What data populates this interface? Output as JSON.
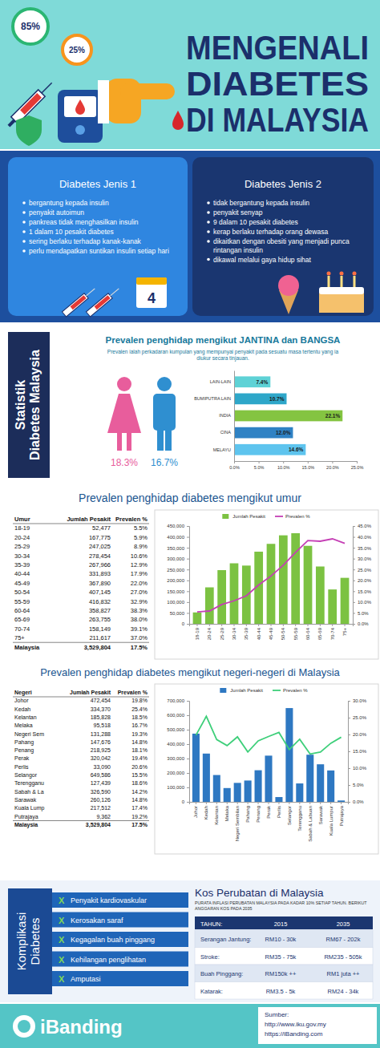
{
  "header": {
    "badges": [
      "85%",
      "25%"
    ],
    "title_lines": [
      "MENGENALI",
      "DIABETES",
      "DI MALAYSIA"
    ]
  },
  "types": [
    {
      "title": "Diabetes Jenis 1",
      "items": [
        "bergantung kepada insulin",
        "penyakit autoimun",
        "pankreas tidak menghasilkan insulin",
        "1 dalam 10 pesakit diabetes",
        "sering berlaku terhadap kanak-kanak",
        "perlu mendapatkan suntikan insulin setiap hari"
      ]
    },
    {
      "title": "Diabetes Jenis 2",
      "items": [
        "tidak bergantung kepada insulin",
        "penyakit senyap",
        "9 dalam 10 pesakit diabetes",
        "kerap berlaku terhadap orang dewasa",
        "dikaitkan dengan obesiti yang menjadi punca rintangan insulin",
        "dikawal melalui gaya hidup sihat"
      ]
    }
  ],
  "calendar_number": "4",
  "stats": {
    "side_label_lines": [
      "Statistik",
      "Diabetes Malaysia"
    ],
    "title": "Prevalen penghidap mengikut JANTINA dan BANGSA",
    "subtitle": "Prevalen ialah perkadaran kumpulan yang mempunyai penyakit pada sesuatu masa tertentu yang ia diukur secara tinjauan.",
    "gender": [
      "18.3%",
      "16.7%"
    ]
  },
  "chart_data": [
    {
      "type": "bar",
      "orientation": "horizontal",
      "categories": [
        "LAIN-LAIN",
        "BUMIPUTRA LAIN",
        "INDIA",
        "CINA",
        "MELAYU"
      ],
      "values": [
        7.4,
        10.7,
        22.1,
        12.0,
        14.6
      ],
      "value_labels": [
        "7.4%",
        "10.7%",
        "22.1%",
        "12.0%",
        "14.6%"
      ],
      "colors": [
        "#5ed2d6",
        "#2ea7c9",
        "#84c441",
        "#2f82c4",
        "#5ec4ee"
      ],
      "xlim": [
        0,
        25
      ],
      "xticks": [
        {
          "value": 0,
          "label": "0.0%"
        },
        {
          "value": 5,
          "label": "5.0%"
        },
        {
          "value": 10,
          "label": "10.0%"
        },
        {
          "value": 15,
          "label": "15.0%"
        },
        {
          "value": 20,
          "label": "20.0%"
        },
        {
          "value": 25,
          "label": "25.0%"
        }
      ],
      "data_labels": true,
      "grid": false
    },
    {
      "type": "bar",
      "title": "Prevalen penghidap diabetes mengikut umur",
      "categories": [
        "18-19",
        "20-24",
        "25-29",
        "30-34",
        "35-39",
        "40-44",
        "45-49",
        "50-54",
        "55-59",
        "60-64",
        "65-69",
        "70-74",
        "75+"
      ],
      "series": [
        {
          "name": "Jumlah Pesakit",
          "type": "bar",
          "color": "#7cc242",
          "values": [
            52477,
            167775,
            247025,
            278454,
            267966,
            331893,
            367890,
            407145,
            416832,
            358827,
            263755,
            158149,
            211617
          ]
        },
        {
          "name": "Prevalen %",
          "type": "line",
          "axis": "y2",
          "color": "#c53fb5",
          "values": [
            5.5,
            5.9,
            8.9,
            10.6,
            12.9,
            17.9,
            22.0,
            27.0,
            32.9,
            38.3,
            38.0,
            39.1,
            37.0
          ]
        }
      ],
      "ylim": [
        0,
        450000
      ],
      "yticks": [
        0,
        {
          "value": 50000,
          "label": "50,000"
        },
        {
          "value": 100000,
          "label": "100,000"
        },
        {
          "value": 150000,
          "label": "150,000"
        },
        {
          "value": 200000,
          "label": "200,000"
        },
        {
          "value": 250000,
          "label": "250,000"
        },
        {
          "value": 300000,
          "label": "300,000"
        },
        {
          "value": 350000,
          "label": "350,000"
        },
        {
          "value": 400000,
          "label": "400,000"
        },
        {
          "value": 450000,
          "label": "450,000"
        }
      ],
      "y2lim": [
        0,
        45
      ],
      "y2ticks": [
        {
          "value": 0,
          "label": "0.0%"
        },
        {
          "value": 5,
          "label": "5.0%"
        },
        {
          "value": 10,
          "label": "10.0%"
        },
        {
          "value": 15,
          "label": "15.0%"
        },
        {
          "value": 20,
          "label": "20.0%"
        },
        {
          "value": 25,
          "label": "25.0%"
        },
        {
          "value": 30,
          "label": "30.0%"
        },
        {
          "value": 35,
          "label": "35.0%"
        },
        {
          "value": 40,
          "label": "40.0%"
        },
        {
          "value": 45,
          "label": "45.0%"
        }
      ],
      "legend": "top",
      "grid": false
    },
    {
      "type": "bar",
      "title": "Prevalen penghidap diabetes mengikut negeri-negeri di Malaysia",
      "categories": [
        "Johor",
        "Kedah",
        "Kelantan",
        "Melaka",
        "Negeri Sembilan",
        "Pahang",
        "Penang",
        "Perak",
        "Perlis",
        "Selangor",
        "Terengganu",
        "Sabah & Labuan",
        "Sarawak",
        "Kuala Lumpur",
        "Putrajaya"
      ],
      "series": [
        {
          "name": "Jumlah Pesakit",
          "type": "bar",
          "color": "#2e78c2",
          "values": [
            472454,
            334370,
            185828,
            95518,
            131288,
            147676,
            218925,
            320042,
            33090,
            649586,
            127439,
            326590,
            260126,
            217512,
            9362
          ]
        },
        {
          "name": "Prevalen %",
          "type": "line",
          "axis": "y2",
          "color": "#3ecf7a",
          "values": [
            19.8,
            25.4,
            18.5,
            16.7,
            19.3,
            14.8,
            18.1,
            19.4,
            20.6,
            15.5,
            18.6,
            14.2,
            14.8,
            17.4,
            19.2
          ]
        }
      ],
      "ylim": [
        0,
        700000
      ],
      "yticks": [
        0,
        {
          "value": 100000,
          "label": "100,000"
        },
        {
          "value": 200000,
          "label": "200,000"
        },
        {
          "value": 300000,
          "label": "300,000"
        },
        {
          "value": 400000,
          "label": "400,000"
        },
        {
          "value": 500000,
          "label": "500,000"
        },
        {
          "value": 600000,
          "label": "600,000"
        },
        {
          "value": 700000,
          "label": "700,000"
        }
      ],
      "y2lim": [
        0,
        30
      ],
      "y2ticks": [
        {
          "value": 0,
          "label": "0.0%"
        },
        {
          "value": 5,
          "label": "5.0%"
        },
        {
          "value": 10,
          "label": "10.0%"
        },
        {
          "value": 15,
          "label": "15.0%"
        },
        {
          "value": 20,
          "label": "20.0%"
        },
        {
          "value": 25,
          "label": "25.0%"
        },
        {
          "value": 30,
          "label": "30.0%"
        }
      ],
      "legend": "top",
      "grid": false
    }
  ],
  "age_table": {
    "header": [
      "Umur",
      "Jumlah Pesakit",
      "Prevalen %"
    ],
    "rows": [
      [
        "18-19",
        "52,477",
        "5.5%"
      ],
      [
        "20-24",
        "167,775",
        "5.9%"
      ],
      [
        "25-29",
        "247,025",
        "8.9%"
      ],
      [
        "30-34",
        "278,454",
        "10.6%"
      ],
      [
        "35-39",
        "267,966",
        "12.9%"
      ],
      [
        "40-44",
        "331,893",
        "17.9%"
      ],
      [
        "45-49",
        "367,890",
        "22.0%"
      ],
      [
        "50-54",
        "407,145",
        "27.0%"
      ],
      [
        "55-59",
        "416,832",
        "32.9%"
      ],
      [
        "60-64",
        "358,827",
        "38.3%"
      ],
      [
        "65-69",
        "263,755",
        "38.0%"
      ],
      [
        "70-74",
        "158,149",
        "39.1%"
      ],
      [
        "75+",
        "211,617",
        "37.0%"
      ],
      [
        "Malaysia",
        "3,529,804",
        "17.5%"
      ]
    ]
  },
  "state_table": {
    "header": [
      "Negeri",
      "Jumlah Pesakit",
      "Prevalen %"
    ],
    "rows": [
      [
        "Johor",
        "472,454",
        "19.8%"
      ],
      [
        "Kedah",
        "334,370",
        "25.4%"
      ],
      [
        "Kelantan",
        "185,828",
        "18.5%"
      ],
      [
        "Melaka",
        "95,518",
        "16.7%"
      ],
      [
        "Negeri Sem",
        "131,288",
        "19.3%"
      ],
      [
        "Pahang",
        "147,676",
        "14.8%"
      ],
      [
        "Penang",
        "218,925",
        "18.1%"
      ],
      [
        "Perak",
        "320,042",
        "19.4%"
      ],
      [
        "Perlis",
        "33,090",
        "20.6%"
      ],
      [
        "Selangor",
        "649,586",
        "15.5%"
      ],
      [
        "Terengganu",
        "127,439",
        "18.6%"
      ],
      [
        "Sabah & La",
        "326,590",
        "14.2%"
      ],
      [
        "Sarawak",
        "260,126",
        "14.8%"
      ],
      [
        "Kuala Lump",
        "217,512",
        "17.4%"
      ],
      [
        "Putrajaya",
        "9,362",
        "19.2%"
      ],
      [
        "Malaysia",
        "3,529,804",
        "17.5%"
      ]
    ]
  },
  "complications": {
    "side_label_lines": [
      "Komplikasi",
      "Diabetes"
    ],
    "bullet": "X",
    "items": [
      "Penyakit kardiovaskular",
      "Kerosakan saraf",
      "Kegagalan buah pinggang",
      "Kehilangan penglihatan",
      "Amputasi"
    ]
  },
  "costs": {
    "title": "Kos Perubatan di Malaysia",
    "subtitle": "PURATA INFLASI PERUBATAN MALAYSIA PADA KADAR 10% SETIAP TAHUN. BERIKUT ANGGARAN KOS PADA 2035",
    "header": [
      "TAHUN:",
      "2015",
      "2035"
    ],
    "rows": [
      [
        "Serangan Jantung:",
        "RM10 - 30k",
        "RM67 - 202k"
      ],
      [
        "Stroke:",
        "RM35 - 75k",
        "RM235 - 505k"
      ],
      [
        "Buah Pinggang:",
        "RM150k ++",
        "RM1 juta ++"
      ],
      [
        "Katarak:",
        "RM3.5 - 5k",
        "RM24 - 34k"
      ]
    ]
  },
  "footer": {
    "brand": "iBanding",
    "source_label": "Sumber:",
    "sources": [
      "http://www.iku.gov.my",
      "https://iBanding.com"
    ]
  }
}
